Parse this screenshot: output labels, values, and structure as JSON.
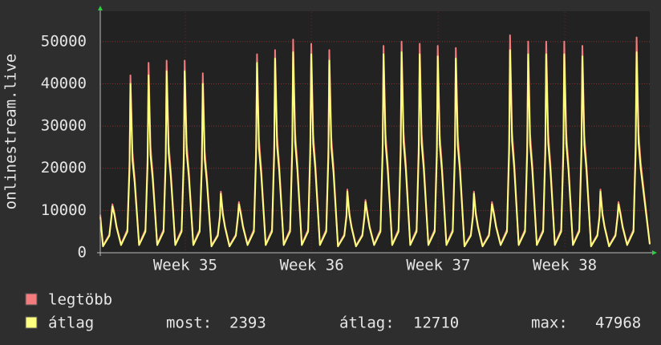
{
  "chart_data": {
    "type": "line",
    "ylabel": "onlinestream.live",
    "xlim": [
      0,
      30.4
    ],
    "ylim": [
      0,
      57000
    ],
    "yticks": [
      0,
      10000,
      20000,
      30000,
      40000,
      50000
    ],
    "xticks": [
      {
        "value": 4.7,
        "label": "Week 35"
      },
      {
        "value": 11.7,
        "label": "Week 36"
      },
      {
        "value": 18.7,
        "label": "Week 37"
      },
      {
        "value": 25.7,
        "label": "Week 38"
      }
    ],
    "grid": true,
    "x": [
      0,
      0.15,
      0.5,
      0.62,
      0.67,
      0.78,
      0.9,
      1.15,
      1.5,
      1.62,
      1.67,
      1.78,
      1.9,
      2.15,
      2.5,
      2.62,
      2.67,
      2.78,
      2.9,
      3.15,
      3.5,
      3.62,
      3.67,
      3.78,
      3.9,
      4.15,
      4.5,
      4.62,
      4.67,
      4.78,
      4.9,
      5.15,
      5.5,
      5.62,
      5.67,
      5.78,
      5.9,
      6.15,
      6.5,
      6.62,
      6.67,
      6.78,
      6.9,
      7.15,
      7.5,
      7.62,
      7.67,
      7.78,
      7.9,
      8.15,
      8.5,
      8.62,
      8.67,
      8.78,
      8.9,
      9.15,
      9.5,
      9.62,
      9.67,
      9.78,
      9.9,
      10.15,
      10.5,
      10.62,
      10.67,
      10.78,
      10.9,
      11.15,
      11.5,
      11.62,
      11.67,
      11.78,
      11.9,
      12.15,
      12.5,
      12.62,
      12.67,
      12.78,
      12.9,
      13.15,
      13.5,
      13.62,
      13.67,
      13.78,
      13.9,
      14.15,
      14.5,
      14.62,
      14.67,
      14.78,
      14.9,
      15.15,
      15.5,
      15.62,
      15.67,
      15.78,
      15.9,
      16.15,
      16.5,
      16.62,
      16.67,
      16.78,
      16.9,
      17.15,
      17.5,
      17.62,
      17.67,
      17.78,
      17.9,
      18.15,
      18.5,
      18.62,
      18.67,
      18.78,
      18.9,
      19.15,
      19.5,
      19.62,
      19.67,
      19.78,
      19.9,
      20.15,
      20.5,
      20.62,
      20.67,
      20.78,
      20.9,
      21.15,
      21.5,
      21.62,
      21.67,
      21.78,
      21.9,
      22.15,
      22.5,
      22.62,
      22.67,
      22.78,
      22.9,
      23.15,
      23.5,
      23.62,
      23.67,
      23.78,
      23.9,
      24.15,
      24.5,
      24.62,
      24.67,
      24.78,
      24.9,
      25.15,
      25.5,
      25.62,
      25.67,
      25.78,
      25.9,
      26.15,
      26.5,
      26.62,
      26.67,
      26.78,
      26.9,
      27.15,
      27.5,
      27.62,
      27.67,
      27.78,
      27.9,
      28.15,
      28.5,
      28.62,
      28.67,
      28.78,
      28.9,
      29.15,
      29.5,
      29.62,
      29.67,
      29.78,
      29.9,
      30.4
    ],
    "series": [
      {
        "name": "legtöbb",
        "color": "#f47c7c",
        "values": [
          9000,
          1700,
          4300,
          9000,
          11500,
          9500,
          6300,
          2000,
          5500,
          22000,
          42000,
          24000,
          18000,
          2000,
          5500,
          23100,
          45000,
          25200,
          18900,
          2000,
          5500,
          23650,
          45500,
          25800,
          19350,
          2000,
          5500,
          23650,
          45500,
          25800,
          19350,
          2000,
          5500,
          22000,
          42500,
          24000,
          18000,
          1700,
          4300,
          9000,
          14500,
          9500,
          6300,
          1700,
          4300,
          9000,
          12000,
          9500,
          6300,
          2000,
          5500,
          24750,
          47000,
          27000,
          20250,
          2000,
          5500,
          25300,
          48000,
          27600,
          20700,
          2000,
          5500,
          26125,
          50500,
          28500,
          21375,
          2000,
          5500,
          25850,
          49500,
          28200,
          21150,
          2000,
          5500,
          25025,
          48000,
          27300,
          20475,
          1700,
          4300,
          9000,
          15000,
          9500,
          6300,
          1700,
          4300,
          9000,
          12500,
          9500,
          6300,
          2000,
          5500,
          25850,
          49000,
          28200,
          21150,
          2000,
          5500,
          26125,
          50000,
          28500,
          21375,
          2000,
          5500,
          25850,
          49500,
          28200,
          21150,
          2000,
          5500,
          25575,
          49000,
          27900,
          20925,
          2000,
          5500,
          25300,
          48500,
          27600,
          20700,
          1700,
          4300,
          9000,
          14500,
          9500,
          6300,
          1700,
          4300,
          9000,
          12000,
          9500,
          6300,
          2000,
          5500,
          26382,
          51500,
          28781,
          21586,
          2000,
          5500,
          25850,
          50000,
          28200,
          21150,
          2000,
          5500,
          25850,
          50000,
          28200,
          21150,
          2000,
          5500,
          25850,
          50000,
          28200,
          21150,
          2000,
          5500,
          25575,
          49000,
          27900,
          20925,
          1700,
          4300,
          9000,
          15000,
          9500,
          6300,
          1700,
          4300,
          9000,
          12000,
          9500,
          6300,
          2000,
          5500,
          26125,
          51000,
          28500,
          21375,
          2200
        ]
      },
      {
        "name": "átlag",
        "color": "#ffff80",
        "values": [
          8500,
          1500,
          4000,
          8500,
          11000,
          9000,
          6000,
          1800,
          5000,
          20000,
          40000,
          22000,
          16800,
          1800,
          5000,
          21000,
          42000,
          23100,
          17640,
          1800,
          5000,
          21500,
          43000,
          23650,
          18060,
          1800,
          5000,
          21500,
          43000,
          23650,
          18060,
          1800,
          5000,
          20000,
          40000,
          22000,
          16800,
          1500,
          4000,
          8500,
          14000,
          9000,
          6000,
          1500,
          4000,
          8500,
          11500,
          9000,
          6000,
          1800,
          5000,
          22500,
          45000,
          24750,
          18900,
          1800,
          5000,
          23000,
          46000,
          25300,
          19320,
          1800,
          5000,
          23750,
          47500,
          26125,
          19950,
          1800,
          5000,
          23500,
          47000,
          25850,
          19740,
          1800,
          5000,
          22750,
          45500,
          25025,
          19110,
          1500,
          4000,
          8500,
          14500,
          9000,
          6000,
          1500,
          4000,
          8500,
          12000,
          9000,
          6000,
          1800,
          5000,
          23500,
          47000,
          25850,
          19740,
          1800,
          5000,
          23750,
          47500,
          26125,
          19950,
          1800,
          5000,
          23500,
          47000,
          25850,
          19740,
          1800,
          5000,
          23250,
          46500,
          25575,
          19530,
          1800,
          5000,
          23000,
          46000,
          25300,
          19320,
          1500,
          4000,
          8500,
          14000,
          9000,
          6000,
          1500,
          4000,
          8500,
          11500,
          9000,
          6000,
          1800,
          5000,
          23984,
          47968,
          26382,
          20147,
          1800,
          5000,
          23500,
          47000,
          25850,
          19740,
          1800,
          5000,
          23500,
          47000,
          25850,
          19740,
          1800,
          5000,
          23500,
          47000,
          25850,
          19740,
          1800,
          5000,
          23250,
          46500,
          25575,
          19530,
          1500,
          4000,
          8500,
          14500,
          9000,
          6000,
          1500,
          4000,
          8500,
          11500,
          9000,
          6000,
          1800,
          5000,
          23750,
          47500,
          26125,
          19950,
          2000
        ]
      }
    ],
    "stats": [
      {
        "label": "most:",
        "value": 2393
      },
      {
        "label": "átlag:",
        "value": 12710
      },
      {
        "label": "max:",
        "value": 47968
      }
    ]
  }
}
